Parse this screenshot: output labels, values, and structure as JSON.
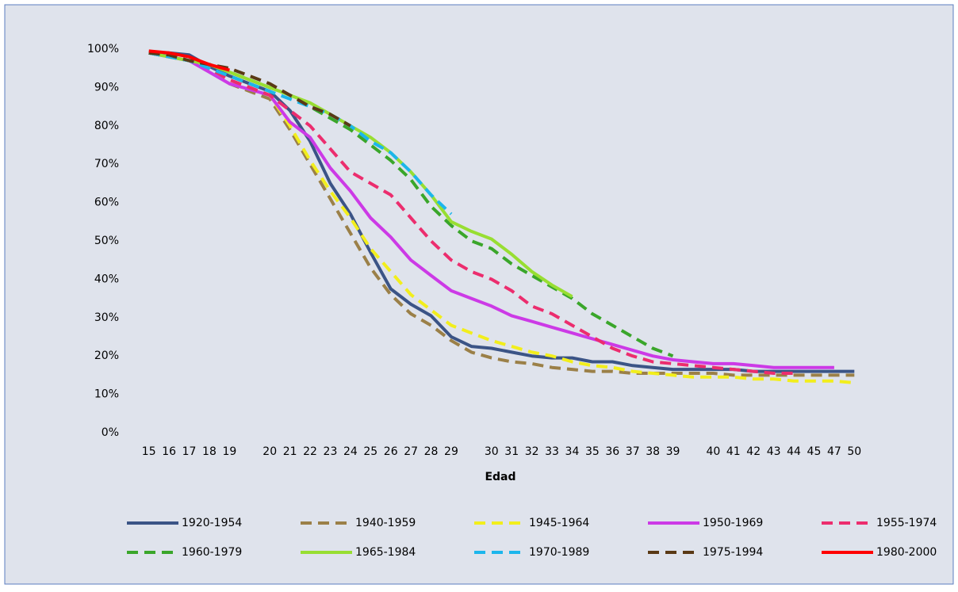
{
  "chart_data": {
    "type": "line",
    "x_label": "Edad",
    "categories": [
      "15",
      "16",
      "17",
      "18",
      "19",
      null,
      "20",
      "21",
      "22",
      "23",
      "24",
      "25",
      "26",
      "27",
      "28",
      "29",
      null,
      "30",
      "31",
      "32",
      "33",
      "34",
      "35",
      "36",
      "37",
      "38",
      "39",
      null,
      "40",
      "41",
      "42",
      "43",
      "44",
      "45",
      "47",
      "50"
    ],
    "ylim": [
      0,
      100
    ],
    "yticks": [
      {
        "value": 0,
        "label": "0%"
      },
      {
        "value": 10,
        "label": "10%"
      },
      {
        "value": 20,
        "label": "20%"
      },
      {
        "value": 30,
        "label": "30%"
      },
      {
        "value": 40,
        "label": "40%"
      },
      {
        "value": 50,
        "label": "50%"
      },
      {
        "value": 60,
        "label": "60%"
      },
      {
        "value": 70,
        "label": "70%"
      },
      {
        "value": 80,
        "label": "80%"
      },
      {
        "value": 90,
        "label": "90%"
      },
      {
        "value": 100,
        "label": "100%"
      }
    ],
    "grid": false,
    "legend": "bottom",
    "series": [
      {
        "name": "1920-1954",
        "color": "#3b5486",
        "dashed": false,
        "values": [
          99,
          99,
          98.5,
          95.5,
          93,
          91,
          89,
          84,
          76,
          65,
          57,
          47,
          37.5,
          33.5,
          30.5,
          25,
          22.5,
          22,
          21,
          20,
          19.5,
          19.5,
          18.5,
          18.5,
          17.5,
          17,
          16.5,
          16.5,
          16.5,
          16.5,
          16,
          16,
          16,
          16,
          16,
          16
        ]
      },
      {
        "name": "1940-1959",
        "color": "#9b8048",
        "dashed": true,
        "values": [
          99,
          98,
          97,
          95,
          91,
          89,
          87,
          79,
          70,
          61,
          52,
          43,
          36,
          31,
          28,
          24,
          21,
          19.5,
          18.5,
          18,
          17,
          16.5,
          16,
          16,
          15.5,
          15.5,
          15.5,
          15.5,
          15.5,
          15,
          15,
          15,
          15,
          15,
          15,
          15
        ]
      },
      {
        "name": "1945-1964",
        "color": "#f2ee1c",
        "dashed": true,
        "values": [
          99,
          98,
          97,
          95,
          92,
          90,
          88,
          80,
          71,
          63,
          56,
          48,
          42,
          36,
          32,
          28,
          26,
          24,
          22.5,
          21,
          20,
          18.5,
          17.5,
          17,
          16,
          15.5,
          15,
          14.5,
          14.5,
          14.5,
          14,
          14,
          13.5,
          13.5,
          13.5,
          13
        ]
      },
      {
        "name": "1950-1969",
        "color": "#cc3ae6",
        "dashed": false,
        "values": [
          99,
          98,
          97,
          94,
          91,
          89.5,
          88,
          81,
          77,
          69,
          63,
          56,
          51,
          45,
          41,
          37,
          35,
          33,
          30.5,
          29,
          27.5,
          26,
          24.5,
          23,
          21.5,
          20,
          19,
          18.5,
          18,
          18,
          17.5,
          17,
          17,
          17,
          17,
          null
        ]
      },
      {
        "name": "1955-1974",
        "color": "#ec2d6e",
        "dashed": true,
        "values": [
          99,
          98,
          97,
          95,
          92,
          90,
          88,
          84,
          80,
          74,
          68,
          65,
          62,
          56,
          50,
          45,
          42,
          40,
          37,
          33,
          31,
          28,
          25,
          22,
          20,
          18.5,
          18,
          17.5,
          17,
          16.5,
          16,
          15.5,
          15.5,
          null,
          null,
          null
        ]
      },
      {
        "name": "1960-1979",
        "color": "#3aa62a",
        "dashed": true,
        "values": [
          99,
          98,
          97,
          96,
          94,
          92,
          90,
          88,
          85,
          82,
          79,
          75,
          71,
          66,
          59,
          54,
          50,
          48,
          44,
          41,
          38,
          35,
          31,
          28,
          25,
          22,
          20,
          null,
          null,
          null,
          null,
          null,
          null,
          null,
          null,
          null
        ]
      },
      {
        "name": "1965-1984",
        "color": "#98de32",
        "dashed": false,
        "values": [
          99,
          98,
          97,
          96,
          94,
          92,
          90,
          88,
          86,
          83,
          80,
          77,
          73,
          68,
          62,
          55,
          52.5,
          50.5,
          46.5,
          42,
          38.5,
          35.5,
          null,
          null,
          null,
          null,
          null,
          null,
          null,
          null,
          null,
          null,
          null,
          null,
          null,
          null
        ]
      },
      {
        "name": "1970-1989",
        "color": "#1cb6ec",
        "dashed": true,
        "values": [
          99,
          98,
          97,
          95,
          93,
          91,
          89,
          87,
          85,
          83,
          80,
          76,
          73,
          68,
          62,
          57,
          null,
          null,
          null,
          null,
          null,
          null,
          null,
          null,
          null,
          null,
          null,
          null,
          null,
          null,
          null,
          null,
          null,
          null,
          null,
          null
        ]
      },
      {
        "name": "1975-1994",
        "color": "#5a3915",
        "dashed": true,
        "values": [
          99,
          98.5,
          97,
          96,
          95,
          93,
          91,
          88,
          85,
          83,
          80,
          null,
          null,
          null,
          null,
          null,
          null,
          null,
          null,
          null,
          null,
          null,
          null,
          null,
          null,
          null,
          null,
          null,
          null,
          null,
          null,
          null,
          null,
          null,
          null,
          null
        ]
      },
      {
        "name": "1980-2000",
        "color": "#ff0000",
        "dashed": false,
        "values": [
          99.5,
          99,
          98,
          96,
          94.5,
          null,
          null,
          null,
          null,
          null,
          null,
          null,
          null,
          null,
          null,
          null,
          null,
          null,
          null,
          null,
          null,
          null,
          null,
          null,
          null,
          null,
          null,
          null,
          null,
          null,
          null,
          null,
          null,
          null,
          null,
          null
        ]
      }
    ]
  }
}
